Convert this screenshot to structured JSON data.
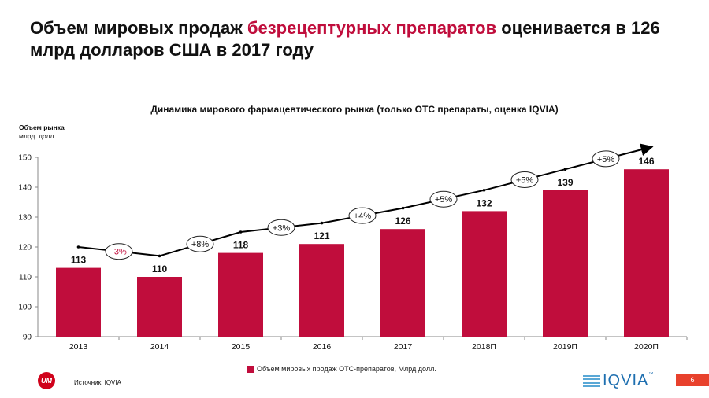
{
  "title": {
    "part1": "Объем мировых продаж ",
    "highlight": "безрецептурных препаратов",
    "part2": " оценивается в 126 млрд долларов США в 2017 году"
  },
  "chart_data": {
    "type": "bar",
    "title": "Динамика мирового фармацевтического рынка (только ОТС препараты, оценка IQVIA)",
    "ylabel_title": "Объем рынка",
    "ylabel_unit": "млрд. долл.",
    "categories": [
      "2013",
      "2014",
      "2015",
      "2016",
      "2017",
      "2018П",
      "2019П",
      "2020П"
    ],
    "values": [
      113,
      110,
      118,
      121,
      126,
      132,
      139,
      146
    ],
    "ylim": [
      90,
      150
    ],
    "yticks": [
      90,
      100,
      110,
      120,
      130,
      140,
      150
    ],
    "growth_labels": [
      "-3%",
      "+8%",
      "+3%",
      "+4%",
      "+5%",
      "+5%",
      "+5%"
    ],
    "legend": "Объем мировых продаж ОТС-препаратов, Млрд долл.",
    "bar_color": "#c00d3c",
    "negative_color": "#c00d3c"
  },
  "footer": {
    "logo": "UM",
    "source": "Источник: IQVIA",
    "brand": "IQVIA",
    "brand_tm": "™",
    "page_number": "6"
  }
}
